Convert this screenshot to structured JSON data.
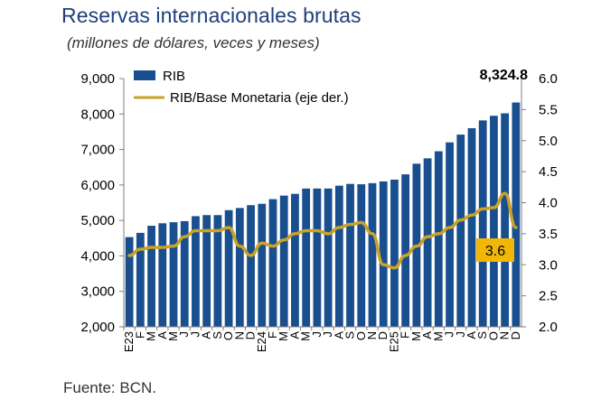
{
  "header": {
    "title": "Reservas internacionales brutas",
    "subtitle": "(millones de dólares, veces y meses)"
  },
  "footer": {
    "source": "Fuente: BCN."
  },
  "colors": {
    "bars": "#1a4f8f",
    "line": "#c9a227",
    "title": "#1f3f7a",
    "annotation_box": "#f2b705"
  },
  "chart_data": {
    "type": "bar",
    "categories": [
      "E23",
      "F",
      "M",
      "A",
      "M",
      "J",
      "J",
      "A",
      "S",
      "O",
      "N",
      "D",
      "E24",
      "F",
      "M",
      "A",
      "M",
      "J",
      "J",
      "A",
      "S",
      "O",
      "N",
      "D",
      "E25",
      "F",
      "M",
      "A",
      "M",
      "J",
      "J",
      "A",
      "S",
      "O",
      "N",
      "D"
    ],
    "xlabel": "",
    "ylabel": "",
    "ylim": [
      2000,
      9000
    ],
    "y2lim": [
      2.0,
      6.0
    ],
    "yticks": [
      "2,000",
      "3,000",
      "4,000",
      "5,000",
      "6,000",
      "7,000",
      "8,000",
      "9,000"
    ],
    "y2ticks": [
      "2.0",
      "2.5",
      "3.0",
      "3.5",
      "4.0",
      "4.5",
      "5.0",
      "5.5",
      "6.0"
    ],
    "grid": false,
    "legend_position": "top-left",
    "series": [
      {
        "name": "RIB",
        "type": "bar",
        "axis": "left",
        "values": [
          4530,
          4650,
          4850,
          4920,
          4950,
          4980,
          5120,
          5150,
          5150,
          5290,
          5350,
          5430,
          5470,
          5600,
          5700,
          5750,
          5900,
          5900,
          5900,
          5980,
          6030,
          6020,
          6050,
          6100,
          6150,
          6300,
          6600,
          6750,
          6950,
          7200,
          7420,
          7600,
          7820,
          7950,
          8020,
          8324.8
        ]
      },
      {
        "name": "RIB/Base Monetaria (eje der.)",
        "type": "line",
        "axis": "right",
        "values": [
          3.15,
          3.25,
          3.28,
          3.28,
          3.3,
          3.45,
          3.55,
          3.55,
          3.55,
          3.6,
          3.3,
          3.15,
          3.35,
          3.3,
          3.4,
          3.5,
          3.55,
          3.55,
          3.5,
          3.6,
          3.65,
          3.68,
          3.5,
          3.0,
          2.95,
          3.15,
          3.3,
          3.45,
          3.5,
          3.6,
          3.72,
          3.8,
          3.9,
          3.92,
          4.15,
          3.6
        ]
      }
    ],
    "annotations": {
      "last_bar_label": "8,324.8",
      "last_line_label": "3.6"
    }
  }
}
